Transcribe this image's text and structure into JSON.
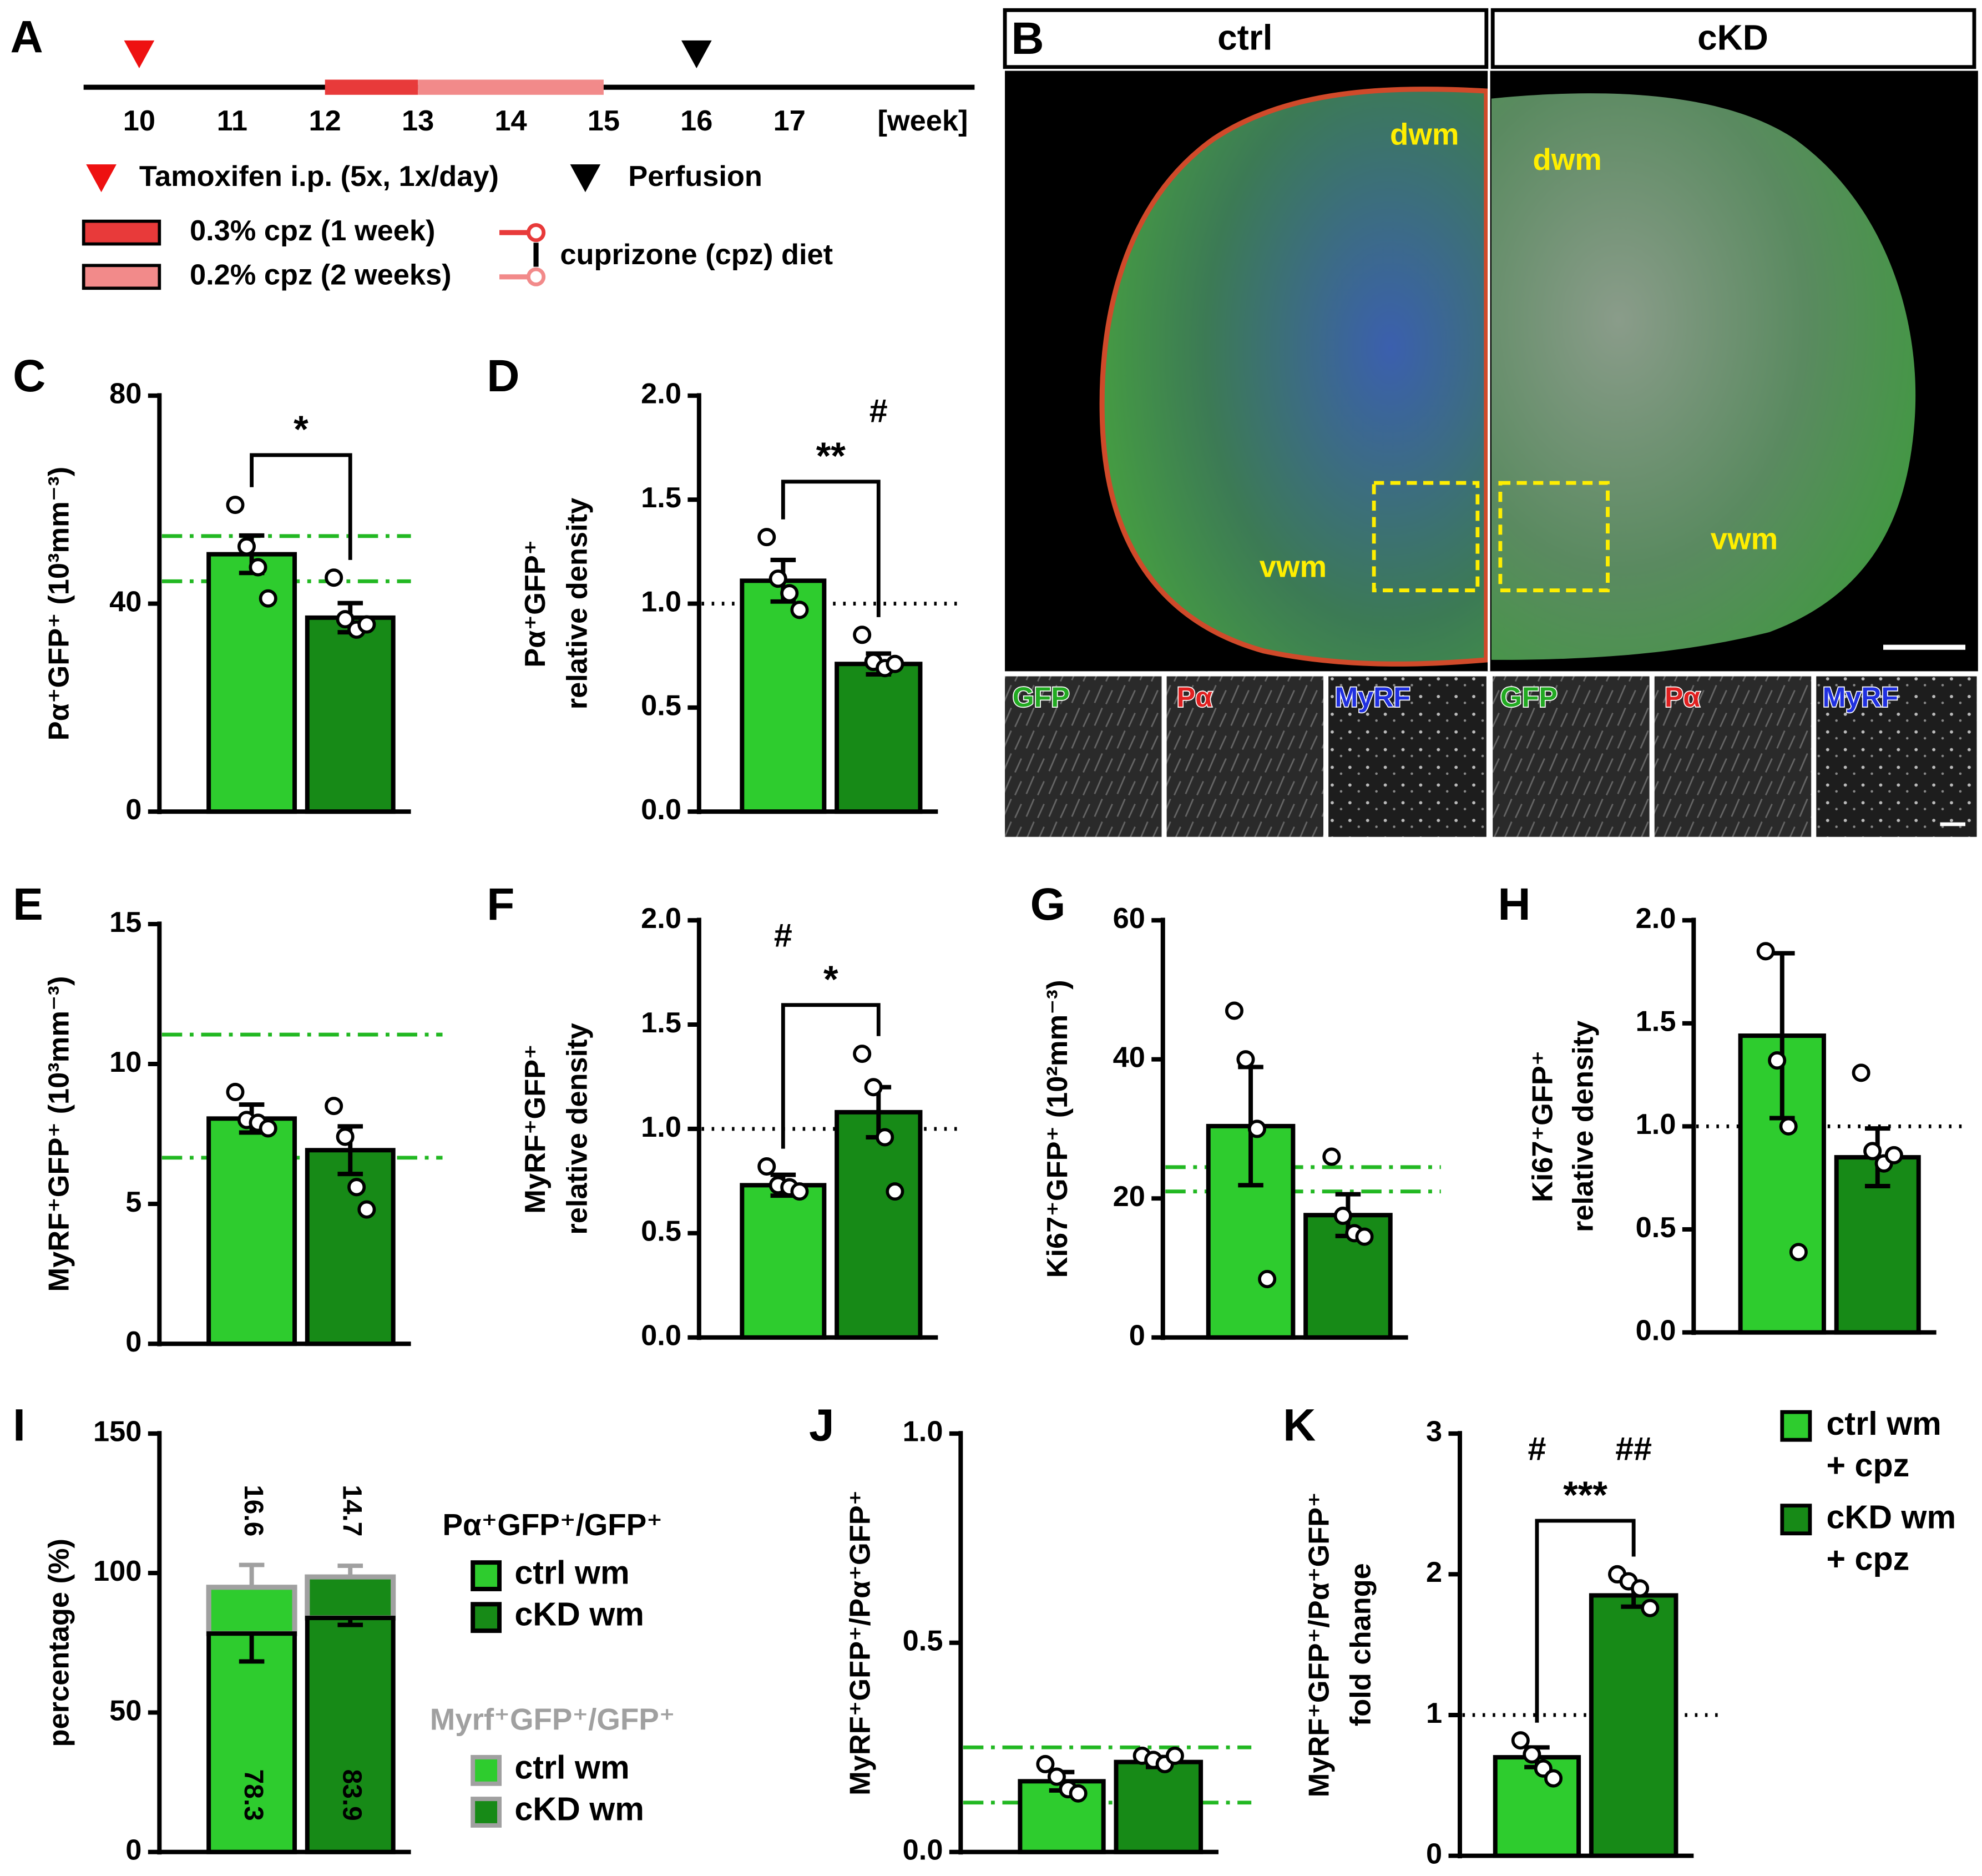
{
  "timeline": {
    "label": "A",
    "weeks": [
      10,
      11,
      12,
      13,
      14,
      15,
      16,
      17
    ],
    "unit": "[week]",
    "tamoxifen_week": 10,
    "perfusion_week": 16,
    "tamoxifen_label": "Tamoxifen i.p. (5x, 1x/day)",
    "perfusion_label": "Perfusion",
    "diet_label": "cuprizone (cpz) diet",
    "phases": [
      {
        "from": 12,
        "to": 13,
        "color": "#e83a3a",
        "label": "0.3% cpz (1 week)"
      },
      {
        "from": 13,
        "to": 15,
        "color": "#f28a8a",
        "label": "0.2% cpz (2 weeks)"
      }
    ]
  },
  "images": {
    "label": "B",
    "columns": [
      "ctrl",
      "cKD"
    ],
    "regions": [
      "dwm",
      "vwm"
    ],
    "channels": [
      "GFP",
      "Pα",
      "MyRF"
    ]
  },
  "chart_data": [
    {
      "type": "bar",
      "panel": "C",
      "ylabel": [
        "Pα⁺GFP⁺ (10³mm⁻³)"
      ],
      "ylim": [
        0,
        80
      ],
      "yticks": [
        0,
        40,
        80
      ],
      "colors": [
        "#2ecc2e",
        "#178a17"
      ],
      "values": [
        49.5,
        37.3
      ],
      "errors": [
        3.6,
        2.8
      ],
      "points": [
        [
          59,
          51,
          47,
          41
        ],
        [
          45,
          37,
          35,
          36
        ]
      ],
      "ref_lines": [
        {
          "value": 53,
          "style": "dash-dot",
          "color": "#22b822"
        },
        {
          "value": 44.3,
          "style": "dash-dot",
          "color": "#22b822"
        }
      ],
      "bracket": "*"
    },
    {
      "type": "bar",
      "panel": "D",
      "ylabel": [
        "Pα⁺GFP⁺",
        "relative density"
      ],
      "ylim": [
        0,
        2
      ],
      "yticks": [
        {
          "value": 0,
          "label": "0.0"
        },
        0.5,
        {
          "value": 1,
          "label": "1.0"
        },
        1.5,
        {
          "value": 2,
          "label": "2.0"
        }
      ],
      "colors": [
        "#2ecc2e",
        "#178a17"
      ],
      "values": [
        1.11,
        0.71
      ],
      "errors": [
        0.1,
        0.05
      ],
      "points": [
        [
          1.32,
          1.12,
          1.05,
          0.97
        ],
        [
          0.85,
          0.72,
          0.69,
          0.71
        ]
      ],
      "ref_lines": [
        {
          "value": 1,
          "style": "dotted",
          "color": "#000000"
        }
      ],
      "bracket": "**",
      "symbols": [
        null,
        "#"
      ]
    },
    {
      "type": "bar",
      "panel": "E",
      "ylabel": [
        "MyRF⁺GFP⁺ (10³mm⁻³)"
      ],
      "ylim": [
        0,
        15
      ],
      "yticks": [
        0,
        5,
        10,
        15
      ],
      "colors": [
        "#2ecc2e",
        "#178a17"
      ],
      "values": [
        8.05,
        6.92
      ],
      "errors": [
        0.5,
        0.85
      ],
      "points": [
        [
          9.0,
          8.0,
          7.9,
          7.7
        ],
        [
          8.5,
          7.4,
          5.6,
          4.8
        ]
      ],
      "ref_lines": [
        {
          "value": 11.05,
          "style": "dash-dot",
          "color": "#22b822"
        },
        {
          "value": 6.65,
          "style": "dash-dot",
          "color": "#22b822"
        }
      ]
    },
    {
      "type": "bar",
      "panel": "F",
      "ylabel": [
        "MyRF⁺GFP⁺",
        "relative density"
      ],
      "ylim": [
        0,
        2
      ],
      "yticks": [
        {
          "value": 0,
          "label": "0.0"
        },
        0.5,
        {
          "value": 1,
          "label": "1.0"
        },
        1.5,
        {
          "value": 2,
          "label": "2.0"
        }
      ],
      "colors": [
        "#2ecc2e",
        "#178a17"
      ],
      "values": [
        0.73,
        1.08
      ],
      "errors": [
        0.05,
        0.12
      ],
      "points": [
        [
          0.82,
          0.73,
          0.72,
          0.7
        ],
        [
          1.36,
          1.2,
          0.96,
          0.7
        ]
      ],
      "ref_lines": [
        {
          "value": 1,
          "style": "dotted",
          "color": "#000000"
        }
      ],
      "bracket": "*",
      "symbols": [
        "#",
        null
      ]
    },
    {
      "type": "bar",
      "panel": "G",
      "ylabel": [
        "Ki67⁺GFP⁺ (10²mm⁻³)"
      ],
      "ylim": [
        0,
        60
      ],
      "yticks": [
        0,
        20,
        40,
        60
      ],
      "colors": [
        "#2ecc2e",
        "#178a17"
      ],
      "values": [
        30.4,
        17.6
      ],
      "errors": [
        8.5,
        3
      ],
      "points": [
        [
          47,
          40,
          30,
          8.4
        ],
        [
          26,
          17.5,
          15,
          14.5
        ]
      ],
      "ref_lines": [
        {
          "value": 24.5,
          "style": "dash-dot",
          "color": "#22b822"
        },
        {
          "value": 21,
          "style": "dash-dot",
          "color": "#22b822"
        }
      ]
    },
    {
      "type": "bar",
      "panel": "H",
      "ylabel": [
        "Ki67⁺GFP⁺",
        "relative density"
      ],
      "ylim": [
        0,
        2
      ],
      "yticks": [
        {
          "value": 0,
          "label": "0.0"
        },
        0.5,
        {
          "value": 1,
          "label": "1.0"
        },
        1.5,
        {
          "value": 2,
          "label": "2.0"
        }
      ],
      "colors": [
        "#2ecc2e",
        "#178a17"
      ],
      "values": [
        1.44,
        0.85
      ],
      "errors": [
        0.4,
        0.14
      ],
      "points": [
        [
          1.85,
          1.32,
          1.0,
          0.39
        ],
        [
          1.26,
          0.88,
          0.82,
          0.86
        ]
      ],
      "ref_lines": [
        {
          "value": 1,
          "style": "dotted",
          "color": "#000000"
        }
      ]
    },
    {
      "type": "stacked_bar",
      "panel": "I",
      "ylabel": [
        "percentage (%)"
      ],
      "ylim": [
        0,
        150
      ],
      "yticks": [
        0,
        50,
        100,
        150
      ],
      "colors": [
        "#2ecc2e",
        "#178a17"
      ],
      "series": [
        {
          "name": "Pα⁺GFP⁺/GFP⁺",
          "values": [
            78.3,
            83.9
          ],
          "errors": [
            10,
            2.5
          ],
          "outline": "#000000",
          "legend": [
            "ctrl wm",
            "cKD wm"
          ]
        },
        {
          "name": "Myrf⁺GFP⁺/GFP⁺",
          "values": [
            16.6,
            14.7
          ],
          "errors": [
            8,
            4
          ],
          "outline": "#a0a0a0",
          "legend": [
            "ctrl wm",
            "cKD wm"
          ]
        }
      ]
    },
    {
      "type": "bar",
      "panel": "J",
      "ylabel": [
        "MyRF⁺GFP⁺/Pα⁺GFP⁺"
      ],
      "ylim": [
        0,
        1
      ],
      "yticks": [
        {
          "value": 0,
          "label": "0.0"
        },
        0.5,
        {
          "value": 1,
          "label": "1.0"
        }
      ],
      "colors": [
        "#2ecc2e",
        "#178a17"
      ],
      "values": [
        0.169,
        0.215
      ],
      "errors": [
        0.022,
        0.012
      ],
      "points": [
        [
          0.21,
          0.18,
          0.15,
          0.14
        ],
        [
          0.23,
          0.22,
          0.21,
          0.23
        ]
      ],
      "ref_lines": [
        {
          "value": 0.25,
          "style": "dash-dot",
          "color": "#22b822"
        },
        {
          "value": 0.118,
          "style": "dash-dot",
          "color": "#22b822"
        }
      ]
    },
    {
      "type": "bar",
      "panel": "K",
      "ylabel": [
        "MyRF⁺GFP⁺/Pα⁺GFP⁺",
        "fold change"
      ],
      "ylim": [
        0,
        3
      ],
      "yticks": [
        0,
        1,
        2,
        3
      ],
      "colors": [
        "#2ecc2e",
        "#178a17"
      ],
      "values": [
        0.7,
        1.85
      ],
      "errors": [
        0.07,
        0.08
      ],
      "points": [
        [
          0.82,
          0.72,
          0.62,
          0.55
        ],
        [
          2.0,
          1.95,
          1.9,
          1.76
        ]
      ],
      "ref_lines": [
        {
          "value": 1,
          "style": "dotted",
          "color": "#000000"
        }
      ],
      "bracket": "***",
      "symbols": [
        "#",
        "##"
      ],
      "legend": [
        {
          "lines": [
            "ctrl wm",
            "+ cpz"
          ]
        },
        {
          "lines": [
            "cKD wm",
            "+ cpz"
          ]
        }
      ]
    }
  ]
}
